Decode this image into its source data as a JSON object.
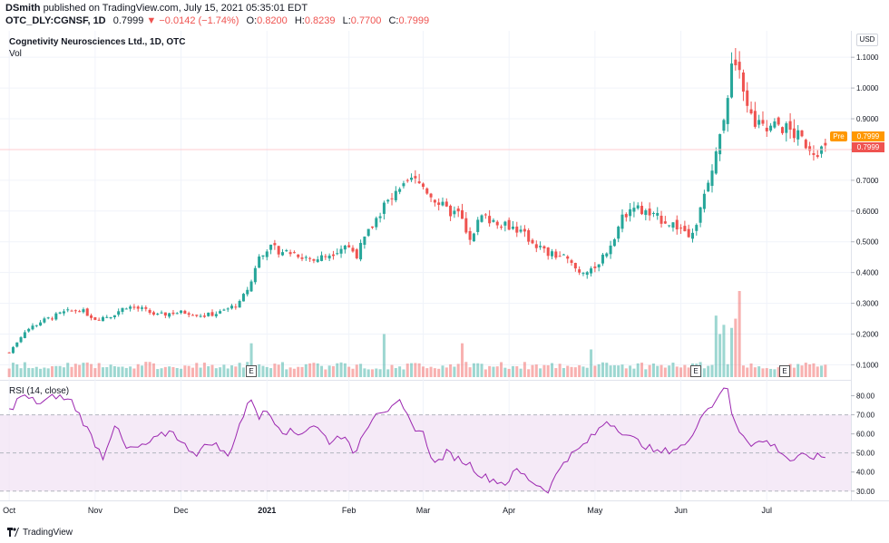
{
  "header": {
    "author": "DSmith",
    "published_text": "published on TradingView.com, July 15, 2021 05:35:01 EDT",
    "symbol": "OTC_DLY:CGNSF, 1D",
    "last": "0.7999",
    "change": "−0.0142 (−1.74%)",
    "o_label": "O:",
    "o": "0.8200",
    "h_label": "H:",
    "h": "0.8239",
    "l_label": "L:",
    "l": "0.7700",
    "c_label": "C:",
    "c": "0.7999"
  },
  "overlay": {
    "title": "Cognetivity Neurosciences Ltd., 1D, OTC",
    "volume_label": "Vol"
  },
  "rsi_label": "RSI (14, close)",
  "currency": "USD",
  "price_tags": {
    "pre_label": "Pre",
    "pre_value": "0.7999",
    "last_value": "0.7999"
  },
  "earnings_marker": "E",
  "footer": {
    "brand": "TradingView"
  },
  "colors": {
    "up": "#26a69a",
    "down": "#ef5350",
    "rsi": "#9c27b0",
    "pre": "#ff9800"
  },
  "chart_data": [
    {
      "type": "candlestick",
      "price_axis_ticks": [
        "0.1000",
        "0.2000",
        "0.3000",
        "0.4000",
        "0.5000",
        "0.6000",
        "0.7000",
        "0.8000",
        "0.9000",
        "1.0000",
        "1.1000"
      ],
      "ylim": [
        0.06,
        1.13
      ],
      "x_tick_labels": [
        "Oct",
        "Nov",
        "Dec",
        "2021",
        "Feb",
        "Mar",
        "Apr",
        "May",
        "Jun",
        "Jul"
      ],
      "x_tick_index": [
        0,
        22,
        44,
        66,
        87,
        106,
        128,
        150,
        172,
        194
      ],
      "anchors": [
        [
          0,
          0.14
        ],
        [
          4,
          0.21
        ],
        [
          8,
          0.24
        ],
        [
          14,
          0.27
        ],
        [
          18,
          0.28
        ],
        [
          22,
          0.25
        ],
        [
          26,
          0.26
        ],
        [
          30,
          0.29
        ],
        [
          34,
          0.28
        ],
        [
          38,
          0.26
        ],
        [
          42,
          0.27
        ],
        [
          46,
          0.27
        ],
        [
          50,
          0.26
        ],
        [
          54,
          0.27
        ],
        [
          59,
          0.3
        ],
        [
          62,
          0.37
        ],
        [
          64,
          0.46
        ],
        [
          66,
          0.48
        ],
        [
          70,
          0.47
        ],
        [
          74,
          0.46
        ],
        [
          78,
          0.44
        ],
        [
          82,
          0.46
        ],
        [
          86,
          0.49
        ],
        [
          89,
          0.46
        ],
        [
          92,
          0.53
        ],
        [
          96,
          0.62
        ],
        [
          100,
          0.66
        ],
        [
          103,
          0.7
        ],
        [
          106,
          0.68
        ],
        [
          109,
          0.64
        ],
        [
          112,
          0.6
        ],
        [
          115,
          0.59
        ],
        [
          118,
          0.52
        ],
        [
          121,
          0.58
        ],
        [
          124,
          0.57
        ],
        [
          127,
          0.56
        ],
        [
          130,
          0.54
        ],
        [
          134,
          0.5
        ],
        [
          138,
          0.46
        ],
        [
          142,
          0.45
        ],
        [
          146,
          0.4
        ],
        [
          150,
          0.42
        ],
        [
          153,
          0.47
        ],
        [
          156,
          0.55
        ],
        [
          159,
          0.62
        ],
        [
          162,
          0.6
        ],
        [
          165,
          0.58
        ],
        [
          168,
          0.57
        ],
        [
          171,
          0.55
        ],
        [
          174,
          0.53
        ],
        [
          176,
          0.56
        ],
        [
          179,
          0.69
        ],
        [
          181,
          0.78
        ],
        [
          183,
          0.91
        ],
        [
          185,
          1.06
        ],
        [
          187,
          1.09
        ],
        [
          189,
          0.93
        ],
        [
          191,
          0.88
        ],
        [
          194,
          0.86
        ],
        [
          197,
          0.88
        ],
        [
          200,
          0.86
        ],
        [
          203,
          0.83
        ],
        [
          206,
          0.8
        ]
      ],
      "volume_spikes": [
        [
          62,
          0.17
        ],
        [
          96,
          0.2
        ],
        [
          116,
          0.17
        ],
        [
          149,
          0.15
        ],
        [
          181,
          0.26
        ],
        [
          182,
          0.2
        ],
        [
          183,
          0.23
        ],
        [
          185,
          0.22
        ],
        [
          186,
          0.25
        ],
        [
          187,
          0.34
        ]
      ]
    },
    {
      "type": "line",
      "name": "RSI (14, close)",
      "y_axis_ticks": [
        "30.00",
        "40.00",
        "50.00",
        "60.00",
        "70.00",
        "80.00"
      ],
      "ylim": [
        28,
        85
      ],
      "band": [
        30,
        70
      ],
      "anchors": [
        [
          0,
          72
        ],
        [
          3,
          80
        ],
        [
          8,
          76
        ],
        [
          12,
          80
        ],
        [
          16,
          77
        ],
        [
          18,
          70
        ],
        [
          22,
          55
        ],
        [
          24,
          48
        ],
        [
          27,
          65
        ],
        [
          30,
          52
        ],
        [
          34,
          53
        ],
        [
          38,
          58
        ],
        [
          42,
          62
        ],
        [
          44,
          55
        ],
        [
          48,
          50
        ],
        [
          52,
          56
        ],
        [
          56,
          48
        ],
        [
          59,
          65
        ],
        [
          62,
          79
        ],
        [
          64,
          69
        ],
        [
          66,
          72
        ],
        [
          70,
          62
        ],
        [
          74,
          60
        ],
        [
          78,
          65
        ],
        [
          82,
          56
        ],
        [
          86,
          60
        ],
        [
          88,
          48
        ],
        [
          91,
          62
        ],
        [
          94,
          72
        ],
        [
          98,
          73
        ],
        [
          100,
          76
        ],
        [
          103,
          65
        ],
        [
          106,
          60
        ],
        [
          109,
          44
        ],
        [
          112,
          50
        ],
        [
          115,
          47
        ],
        [
          118,
          44
        ],
        [
          121,
          38
        ],
        [
          124,
          36
        ],
        [
          127,
          34
        ],
        [
          130,
          41
        ],
        [
          134,
          35
        ],
        [
          138,
          30
        ],
        [
          142,
          46
        ],
        [
          146,
          52
        ],
        [
          150,
          60
        ],
        [
          153,
          67
        ],
        [
          156,
          63
        ],
        [
          159,
          58
        ],
        [
          162,
          55
        ],
        [
          166,
          50
        ],
        [
          170,
          52
        ],
        [
          174,
          55
        ],
        [
          177,
          70
        ],
        [
          180,
          75
        ],
        [
          182,
          82
        ],
        [
          184,
          84
        ],
        [
          185,
          70
        ],
        [
          187,
          62
        ],
        [
          190,
          55
        ],
        [
          194,
          56
        ],
        [
          197,
          52
        ],
        [
          200,
          46
        ],
        [
          203,
          48
        ]
      ]
    }
  ]
}
